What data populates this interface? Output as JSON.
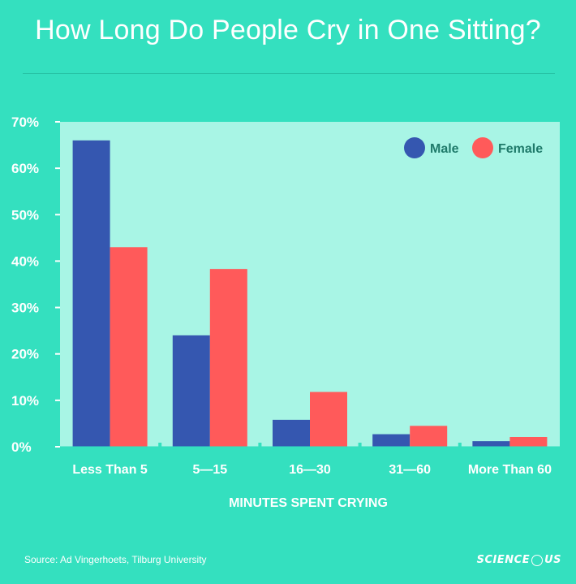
{
  "title": "How Long Do People Cry in One Sitting?",
  "source": "Source: Ad Vingerhoets, Tilburg University",
  "brand": {
    "text_left": "SCIENCE",
    "text_right": "US"
  },
  "colors": {
    "background": "#34e0bf",
    "plot_area": "#a8f5e5",
    "male": "#3557b0",
    "female": "#ff5a5a",
    "text_dark": "#1f7a6a"
  },
  "chart_data": {
    "type": "bar",
    "title": "How Long Do People Cry in One Sitting?",
    "xlabel": "MINUTES SPENT CRYING",
    "ylabel": "",
    "categories": [
      "Less Than 5",
      "5—15",
      "16—30",
      "31—60",
      "More Than 60"
    ],
    "series": [
      {
        "name": "Male",
        "color": "#3557b0",
        "values": [
          66,
          24,
          5.8,
          2.7,
          1.2
        ]
      },
      {
        "name": "Female",
        "color": "#ff5a5a",
        "values": [
          43,
          38.3,
          11.8,
          4.5,
          2.1
        ]
      }
    ],
    "ylim": [
      0,
      70
    ],
    "yticks": [
      0,
      10,
      20,
      30,
      40,
      50,
      60,
      70
    ],
    "ytick_labels": [
      "0%",
      "10%",
      "20%",
      "30%",
      "40%",
      "50%",
      "60%",
      "70%"
    ],
    "legend_position": "top-right",
    "grid": false
  }
}
